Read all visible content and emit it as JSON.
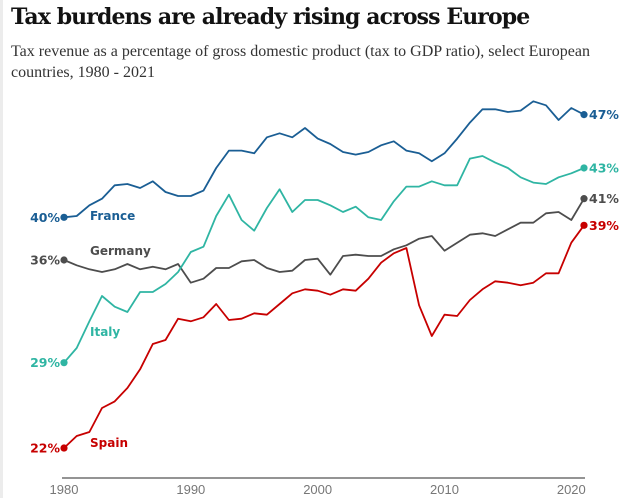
{
  "chart_data": {
    "type": "line",
    "title": "Tax burdens are already rising across Europe",
    "subtitle": "Tax revenue as a percentage of gross domestic product (tax to GDP ratio), select European countries, 1980 - 2021",
    "xlabel": "",
    "ylabel": "",
    "xlim": [
      1980,
      2021
    ],
    "ylim": [
      20,
      48
    ],
    "grid": false,
    "legend": "inline labels",
    "x_ticks": [
      "1980",
      "1990",
      "2000",
      "2010",
      "2020"
    ],
    "x": [
      1980,
      1981,
      1982,
      1983,
      1984,
      1985,
      1986,
      1987,
      1988,
      1989,
      1990,
      1991,
      1992,
      1993,
      1994,
      1995,
      1996,
      1997,
      1998,
      1999,
      2000,
      2001,
      2002,
      2003,
      2004,
      2005,
      2006,
      2007,
      2008,
      2009,
      2010,
      2011,
      2012,
      2013,
      2014,
      2015,
      2016,
      2017,
      2018,
      2019,
      2020,
      2021
    ],
    "series": [
      {
        "name": "France",
        "color": "#1a5e94",
        "start_label": "40%",
        "end_label": "47%",
        "values": [
          39.3,
          39.4,
          40.2,
          40.7,
          41.7,
          41.8,
          41.5,
          42.0,
          41.2,
          40.9,
          40.9,
          41.3,
          43.0,
          44.3,
          44.3,
          44.1,
          45.3,
          45.6,
          45.3,
          46.0,
          45.2,
          44.8,
          44.2,
          44.0,
          44.2,
          44.7,
          45.0,
          44.3,
          44.1,
          43.5,
          44.1,
          45.2,
          46.4,
          47.4,
          47.4,
          47.2,
          47.3,
          48.0,
          47.7,
          46.6,
          47.5,
          47.0
        ]
      },
      {
        "name": "Germany",
        "color": "#4d4d4d",
        "start_label": "36%",
        "end_label": "41%",
        "values": [
          36.1,
          35.7,
          35.4,
          35.2,
          35.4,
          35.8,
          35.4,
          35.6,
          35.4,
          35.8,
          34.4,
          34.7,
          35.5,
          35.5,
          36.0,
          36.1,
          35.5,
          35.2,
          35.3,
          36.1,
          36.2,
          35.0,
          36.4,
          36.5,
          36.4,
          36.4,
          36.9,
          37.2,
          37.7,
          37.9,
          36.8,
          37.4,
          38.0,
          38.1,
          37.9,
          38.4,
          38.9,
          38.9,
          39.6,
          39.7,
          39.1,
          40.7
        ]
      },
      {
        "name": "Italy",
        "color": "#2fb5a3",
        "start_label": "29%",
        "end_label": "43%",
        "values": [
          28.4,
          29.5,
          31.5,
          33.4,
          32.6,
          32.2,
          33.7,
          33.7,
          34.3,
          35.2,
          36.7,
          37.1,
          39.4,
          41.0,
          39.1,
          38.3,
          40.0,
          41.4,
          39.7,
          40.6,
          40.6,
          40.2,
          39.7,
          40.1,
          39.3,
          39.1,
          40.5,
          41.6,
          41.6,
          42.0,
          41.7,
          41.7,
          43.7,
          43.9,
          43.4,
          43.0,
          42.3,
          41.9,
          41.8,
          42.3,
          42.6,
          43.0
        ]
      },
      {
        "name": "Spain",
        "color": "#c70000",
        "start_label": "22%",
        "end_label": "39%",
        "values": [
          22.0,
          22.9,
          23.2,
          25.0,
          25.5,
          26.5,
          27.9,
          29.8,
          30.1,
          31.7,
          31.5,
          31.8,
          32.8,
          31.6,
          31.7,
          32.1,
          32.0,
          32.8,
          33.6,
          33.9,
          33.8,
          33.5,
          33.9,
          33.8,
          34.7,
          35.9,
          36.6,
          37.0,
          32.7,
          30.4,
          32.0,
          31.9,
          33.1,
          33.9,
          34.5,
          34.4,
          34.2,
          34.4,
          35.1,
          35.1,
          37.4,
          38.7
        ]
      }
    ]
  }
}
